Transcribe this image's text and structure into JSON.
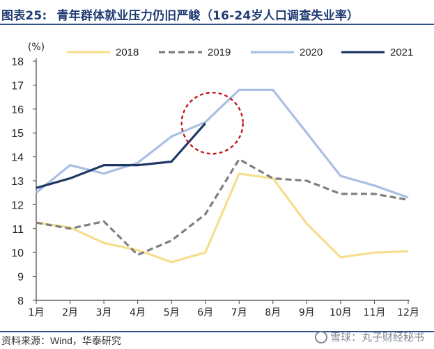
{
  "figure": {
    "label": "图表25:",
    "title": "青年群体就业压力仍旧严峻（16-24岁人口调查失业率）"
  },
  "source": "资料来源：Wind，华泰研究",
  "watermark": "雪球：丸子财经秘书",
  "colors": {
    "2018": "#f7de8c",
    "2019": "#7f7f7f",
    "2020": "#a9bfe3",
    "2021": "#1f3864",
    "highlight": "#c0191f",
    "title": "#1f3b73"
  },
  "chart_data": {
    "type": "line",
    "title": "青年群体就业压力仍旧严峻（16-24岁人口调查失业率）",
    "ylabel": "(%)",
    "xlabel": "",
    "ylim": [
      8,
      18
    ],
    "yticks": [
      "8",
      "9",
      "10",
      "11",
      "12",
      "13",
      "14",
      "15",
      "16",
      "17",
      "18"
    ],
    "categories": [
      "1月",
      "2月",
      "3月",
      "4月",
      "5月",
      "6月",
      "7月",
      "8月",
      "9月",
      "10月",
      "11月",
      "12月"
    ],
    "grid": false,
    "legend_position": "top",
    "series": [
      {
        "name": "2018",
        "style": "solid",
        "values": [
          11.25,
          11.05,
          10.4,
          10.1,
          9.6,
          10.0,
          13.3,
          13.1,
          11.2,
          9.8,
          10.0,
          10.05
        ]
      },
      {
        "name": "2019",
        "style": "dashed",
        "values": [
          11.25,
          11.0,
          11.3,
          9.9,
          10.5,
          11.6,
          13.9,
          13.1,
          13.0,
          12.45,
          12.45,
          12.2
        ]
      },
      {
        "name": "2020",
        "style": "solid",
        "values": [
          12.5,
          13.65,
          13.3,
          13.75,
          14.85,
          15.45,
          16.8,
          16.8,
          15.0,
          13.2,
          12.8,
          12.3
        ]
      },
      {
        "name": "2021",
        "style": "solid",
        "values": [
          12.7,
          13.1,
          13.65,
          13.65,
          13.8,
          15.4,
          null,
          null,
          null,
          null,
          null,
          null
        ]
      }
    ],
    "annotations": [
      {
        "type": "dashed-circle",
        "around": "2021 June value",
        "x": "6月",
        "y": 15.0
      }
    ]
  }
}
